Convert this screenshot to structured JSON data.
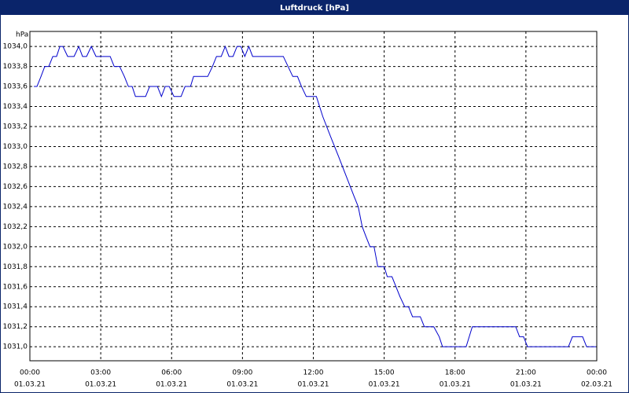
{
  "chart_data": {
    "type": "line",
    "title": "Luftdruck [hPa]",
    "y_unit": "hPa",
    "xlim": [
      0,
      24
    ],
    "ylim": [
      1030.86,
      1034.15
    ],
    "xticks": [
      {
        "value": 0,
        "label": "00:00",
        "date": "01.03.21"
      },
      {
        "value": 3,
        "label": "03:00",
        "date": "01.03.21"
      },
      {
        "value": 6,
        "label": "06:00",
        "date": "01.03.21"
      },
      {
        "value": 9,
        "label": "09:00",
        "date": "01.03.21"
      },
      {
        "value": 12,
        "label": "12:00",
        "date": "01.03.21"
      },
      {
        "value": 15,
        "label": "15:00",
        "date": "01.03.21"
      },
      {
        "value": 18,
        "label": "18:00",
        "date": "01.03.21"
      },
      {
        "value": 21,
        "label": "21:00",
        "date": "01.03.21"
      },
      {
        "value": 24,
        "label": "00:00",
        "date": "02.03.21"
      }
    ],
    "yticks": [
      {
        "value": 1031.0,
        "label": "1031,0"
      },
      {
        "value": 1031.2,
        "label": "1031,2"
      },
      {
        "value": 1031.4,
        "label": "1031,4"
      },
      {
        "value": 1031.6,
        "label": "1031,6"
      },
      {
        "value": 1031.8,
        "label": "1031,8"
      },
      {
        "value": 1032.0,
        "label": "1032,0"
      },
      {
        "value": 1032.2,
        "label": "1032,2"
      },
      {
        "value": 1032.4,
        "label": "1032,4"
      },
      {
        "value": 1032.6,
        "label": "1032,6"
      },
      {
        "value": 1032.8,
        "label": "1032,8"
      },
      {
        "value": 1033.0,
        "label": "1033,0"
      },
      {
        "value": 1033.2,
        "label": "1033,2"
      },
      {
        "value": 1033.4,
        "label": "1033,4"
      },
      {
        "value": 1033.6,
        "label": "1033,6"
      },
      {
        "value": 1033.8,
        "label": "1033,8"
      },
      {
        "value": 1034.0,
        "label": "1034,0"
      }
    ],
    "grid": true,
    "series": [
      {
        "color": "#0000cc",
        "x": [
          0.17,
          0.3,
          0.47,
          0.63,
          0.8,
          0.97,
          1.13,
          1.27,
          1.4,
          1.6,
          1.87,
          2.07,
          2.23,
          2.4,
          2.6,
          2.8,
          3.4,
          3.57,
          3.8,
          4,
          4.17,
          4.33,
          4.47,
          4.9,
          5.07,
          5.4,
          5.57,
          5.73,
          5.9,
          6.1,
          6.4,
          6.57,
          6.8,
          6.93,
          7.53,
          7.73,
          7.9,
          8.1,
          8.27,
          8.43,
          8.6,
          8.77,
          8.93,
          9.1,
          9.27,
          9.43,
          10.73,
          10.93,
          11.13,
          11.33,
          11.5,
          11.7,
          12.13,
          12.4,
          12.73,
          13.07,
          13.4,
          13.73,
          13.9,
          14.07,
          14.23,
          14.4,
          14.57,
          14.73,
          15,
          15.13,
          15.33,
          15.5,
          15.67,
          15.87,
          16.03,
          16.2,
          16.53,
          16.7,
          17.1,
          17.33,
          17.47,
          18.47,
          18.73,
          20.57,
          20.73,
          20.9,
          21.07,
          22.8,
          22.97,
          23.4,
          23.57,
          23.97
        ],
        "values": [
          1033.6,
          1033.6,
          1033.7,
          1033.8,
          1033.8,
          1033.9,
          1033.9,
          1034.0,
          1034.0,
          1033.9,
          1033.9,
          1034.0,
          1033.9,
          1033.9,
          1034.0,
          1033.9,
          1033.9,
          1033.8,
          1033.8,
          1033.7,
          1033.6,
          1033.6,
          1033.5,
          1033.5,
          1033.6,
          1033.6,
          1033.5,
          1033.6,
          1033.6,
          1033.5,
          1033.5,
          1033.6,
          1033.6,
          1033.7,
          1033.7,
          1033.8,
          1033.9,
          1033.9,
          1034.0,
          1033.9,
          1033.9,
          1034.0,
          1034.0,
          1033.9,
          1034.0,
          1033.9,
          1033.9,
          1033.8,
          1033.7,
          1033.7,
          1033.6,
          1033.5,
          1033.5,
          1033.3,
          1033.1,
          1032.9,
          1032.7,
          1032.5,
          1032.4,
          1032.2,
          1032.1,
          1032.0,
          1032.0,
          1031.8,
          1031.8,
          1031.7,
          1031.7,
          1031.6,
          1031.5,
          1031.4,
          1031.4,
          1031.3,
          1031.3,
          1031.2,
          1031.2,
          1031.1,
          1031.0,
          1031.0,
          1031.2,
          1031.2,
          1031.1,
          1031.1,
          1031.0,
          1031.0,
          1031.1,
          1031.1,
          1031.0,
          1031.0
        ]
      }
    ]
  }
}
